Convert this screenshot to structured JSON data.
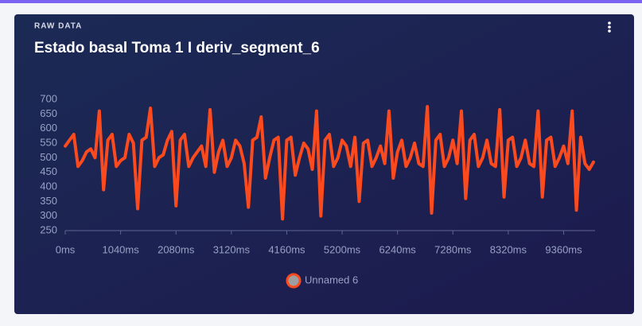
{
  "chart_data": {
    "type": "line",
    "overline": "RAW DATA",
    "title": "Estado basal Toma 1 I deriv_segment_6",
    "x": [
      0,
      80,
      160,
      240,
      320,
      400,
      480,
      560,
      640,
      720,
      800,
      880,
      960,
      1040,
      1120,
      1200,
      1280,
      1360,
      1440,
      1520,
      1600,
      1680,
      1760,
      1840,
      1920,
      2000,
      2080,
      2160,
      2240,
      2320,
      2400,
      2480,
      2560,
      2640,
      2720,
      2800,
      2880,
      2960,
      3040,
      3120,
      3200,
      3280,
      3360,
      3440,
      3520,
      3600,
      3680,
      3760,
      3840,
      3920,
      4000,
      4080,
      4160,
      4240,
      4320,
      4400,
      4480,
      4560,
      4640,
      4720,
      4800,
      4880,
      4960,
      5040,
      5120,
      5200,
      5280,
      5360,
      5440,
      5520,
      5600,
      5680,
      5760,
      5840,
      5920,
      6000,
      6080,
      6160,
      6240,
      6320,
      6400,
      6480,
      6560,
      6640,
      6720,
      6800,
      6880,
      6960,
      7040,
      7120,
      7200,
      7280,
      7360,
      7440,
      7520,
      7600,
      7680,
      7760,
      7840,
      7920,
      8000,
      8080,
      8160,
      8240,
      8320,
      8400,
      8480,
      8560,
      8640,
      8720,
      8800,
      8880,
      8960,
      9040,
      9120,
      9200,
      9280,
      9360,
      9440,
      9520,
      9600,
      9680,
      9760,
      9840,
      9920
    ],
    "series": [
      {
        "name": "Unnamed 6",
        "color": "#fc4a1f",
        "values": [
          540,
          560,
          580,
          470,
          490,
          520,
          530,
          500,
          660,
          390,
          560,
          580,
          470,
          490,
          500,
          580,
          550,
          325,
          560,
          570,
          670,
          470,
          500,
          510,
          560,
          590,
          335,
          560,
          580,
          470,
          500,
          520,
          540,
          470,
          665,
          450,
          520,
          560,
          470,
          500,
          560,
          540,
          480,
          330,
          560,
          570,
          640,
          430,
          500,
          560,
          570,
          290,
          560,
          570,
          440,
          500,
          550,
          530,
          460,
          660,
          300,
          560,
          580,
          470,
          500,
          560,
          540,
          470,
          570,
          350,
          550,
          560,
          470,
          500,
          540,
          480,
          660,
          430,
          520,
          560,
          470,
          500,
          550,
          480,
          470,
          675,
          310,
          560,
          580,
          470,
          500,
          560,
          480,
          660,
          360,
          560,
          580,
          470,
          500,
          560,
          480,
          470,
          665,
          365,
          560,
          570,
          470,
          500,
          560,
          480,
          470,
          660,
          365,
          560,
          570,
          470,
          500,
          540,
          480,
          660,
          320,
          570,
          480,
          460,
          485
        ]
      }
    ],
    "xlim": [
      0,
      9950
    ],
    "xticks": [
      {
        "value": 0,
        "label": "0ms"
      },
      {
        "value": 1040,
        "label": "1040ms"
      },
      {
        "value": 2080,
        "label": "2080ms"
      },
      {
        "value": 3120,
        "label": "3120ms"
      },
      {
        "value": 4160,
        "label": "4160ms"
      },
      {
        "value": 5200,
        "label": "5200ms"
      },
      {
        "value": 6240,
        "label": "6240ms"
      },
      {
        "value": 7280,
        "label": "7280ms"
      },
      {
        "value": 8320,
        "label": "8320ms"
      },
      {
        "value": 9360,
        "label": "9360ms"
      }
    ],
    "ylim": [
      250,
      700
    ],
    "yticks": [
      250,
      300,
      350,
      400,
      450,
      500,
      550,
      600,
      650,
      700
    ]
  }
}
